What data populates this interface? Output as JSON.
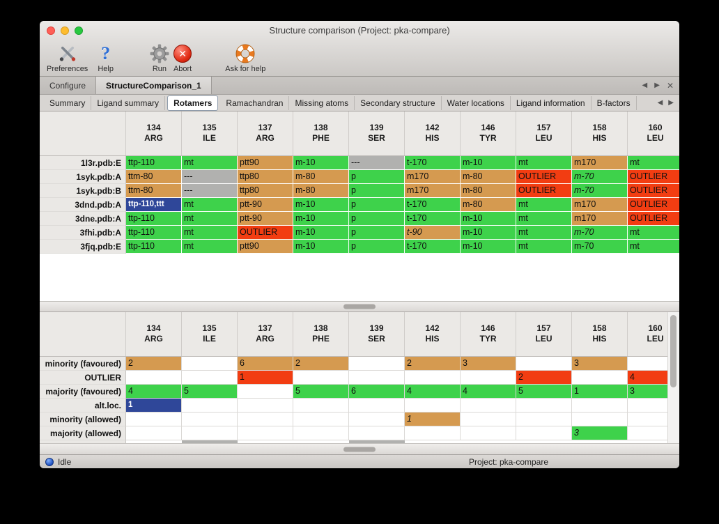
{
  "window": {
    "title": "Structure comparison (Project: pka-compare)"
  },
  "toolbar": {
    "items": [
      {
        "label": "Preferences",
        "icon": "preferences-icon"
      },
      {
        "label": "Help",
        "icon": "help-icon"
      },
      {
        "label": "Run",
        "icon": "run-gear-icon"
      },
      {
        "label": "Abort",
        "icon": "abort-icon"
      },
      {
        "label": "Ask for help",
        "icon": "lifebuoy-icon"
      }
    ]
  },
  "tabs": {
    "items": [
      {
        "label": "Configure",
        "selected": false
      },
      {
        "label": "StructureComparison_1",
        "selected": true
      }
    ]
  },
  "subtabs": {
    "items": [
      "Summary",
      "Ligand summary",
      "Rotamers",
      "Ramachandran",
      "Missing atoms",
      "Secondary structure",
      "Water locations",
      "Ligand information",
      "B-factors"
    ],
    "selected": "Rotamers"
  },
  "columns": [
    {
      "num": "134",
      "res": "ARG"
    },
    {
      "num": "135",
      "res": "ILE"
    },
    {
      "num": "137",
      "res": "ARG"
    },
    {
      "num": "138",
      "res": "PHE"
    },
    {
      "num": "139",
      "res": "SER"
    },
    {
      "num": "142",
      "res": "HIS"
    },
    {
      "num": "146",
      "res": "TYR"
    },
    {
      "num": "157",
      "res": "LEU"
    },
    {
      "num": "158",
      "res": "HIS"
    },
    {
      "num": "160",
      "res": "LEU"
    }
  ],
  "top_table": {
    "rows": [
      {
        "label": "1l3r.pdb:E",
        "cells": [
          {
            "t": "ttp-110",
            "c": "green"
          },
          {
            "t": "mt",
            "c": "green"
          },
          {
            "t": "ptt90",
            "c": "tan"
          },
          {
            "t": "m-10",
            "c": "green"
          },
          {
            "t": "---",
            "c": "gray"
          },
          {
            "t": "t-170",
            "c": "green"
          },
          {
            "t": "m-10",
            "c": "green"
          },
          {
            "t": "mt",
            "c": "green"
          },
          {
            "t": "m170",
            "c": "tan"
          },
          {
            "t": "mt",
            "c": "green"
          }
        ]
      },
      {
        "label": "1syk.pdb:A",
        "cells": [
          {
            "t": "ttm-80",
            "c": "tan"
          },
          {
            "t": "---",
            "c": "gray"
          },
          {
            "t": "ttp80",
            "c": "tan"
          },
          {
            "t": "m-80",
            "c": "tan"
          },
          {
            "t": "p",
            "c": "green"
          },
          {
            "t": "m170",
            "c": "tan"
          },
          {
            "t": "m-80",
            "c": "tan"
          },
          {
            "t": "OUTLIER",
            "c": "red"
          },
          {
            "t": "m-70",
            "c": "green",
            "i": true
          },
          {
            "t": "OUTLIER",
            "c": "red"
          }
        ]
      },
      {
        "label": "1syk.pdb:B",
        "cells": [
          {
            "t": "ttm-80",
            "c": "tan"
          },
          {
            "t": "---",
            "c": "gray"
          },
          {
            "t": "ttp80",
            "c": "tan"
          },
          {
            "t": "m-80",
            "c": "tan"
          },
          {
            "t": "p",
            "c": "green"
          },
          {
            "t": "m170",
            "c": "tan"
          },
          {
            "t": "m-80",
            "c": "tan"
          },
          {
            "t": "OUTLIER",
            "c": "red"
          },
          {
            "t": "m-70",
            "c": "green",
            "i": true
          },
          {
            "t": "OUTLIER",
            "c": "red"
          }
        ]
      },
      {
        "label": "3dnd.pdb:A",
        "cells": [
          {
            "t": "ttp-110,ttt",
            "c": "blue"
          },
          {
            "t": "mt",
            "c": "green"
          },
          {
            "t": "ptt-90",
            "c": "tan"
          },
          {
            "t": "m-10",
            "c": "green"
          },
          {
            "t": "p",
            "c": "green"
          },
          {
            "t": "t-170",
            "c": "green"
          },
          {
            "t": "m-80",
            "c": "tan"
          },
          {
            "t": "mt",
            "c": "green"
          },
          {
            "t": "m170",
            "c": "tan"
          },
          {
            "t": "OUTLIER",
            "c": "red"
          }
        ]
      },
      {
        "label": "3dne.pdb:A",
        "cells": [
          {
            "t": "ttp-110",
            "c": "green"
          },
          {
            "t": "mt",
            "c": "green"
          },
          {
            "t": "ptt-90",
            "c": "tan"
          },
          {
            "t": "m-10",
            "c": "green"
          },
          {
            "t": "p",
            "c": "green"
          },
          {
            "t": "t-170",
            "c": "green"
          },
          {
            "t": "m-10",
            "c": "green"
          },
          {
            "t": "mt",
            "c": "green"
          },
          {
            "t": "m170",
            "c": "tan"
          },
          {
            "t": "OUTLIER",
            "c": "red"
          }
        ]
      },
      {
        "label": "3fhi.pdb:A",
        "cells": [
          {
            "t": "ttp-110",
            "c": "green"
          },
          {
            "t": "mt",
            "c": "green"
          },
          {
            "t": "OUTLIER",
            "c": "red"
          },
          {
            "t": "m-10",
            "c": "green"
          },
          {
            "t": "p",
            "c": "green"
          },
          {
            "t": "t-90",
            "c": "tan",
            "i": true
          },
          {
            "t": "m-10",
            "c": "green"
          },
          {
            "t": "mt",
            "c": "green"
          },
          {
            "t": "m-70",
            "c": "green",
            "i": true
          },
          {
            "t": "mt",
            "c": "green"
          }
        ]
      },
      {
        "label": "3fjq.pdb:E",
        "cells": [
          {
            "t": "ttp-110",
            "c": "green"
          },
          {
            "t": "mt",
            "c": "green"
          },
          {
            "t": "ptt90",
            "c": "tan"
          },
          {
            "t": "m-10",
            "c": "green"
          },
          {
            "t": "p",
            "c": "green"
          },
          {
            "t": "t-170",
            "c": "green"
          },
          {
            "t": "m-10",
            "c": "green"
          },
          {
            "t": "mt",
            "c": "green"
          },
          {
            "t": "m-70",
            "c": "green"
          },
          {
            "t": "mt",
            "c": "green"
          }
        ]
      }
    ]
  },
  "bottom_table": {
    "rows": [
      {
        "label": "minority (favoured)",
        "cells": [
          {
            "t": "2",
            "c": "tan"
          },
          null,
          {
            "t": "6",
            "c": "tan"
          },
          {
            "t": "2",
            "c": "tan"
          },
          null,
          {
            "t": "2",
            "c": "tan"
          },
          {
            "t": "3",
            "c": "tan"
          },
          null,
          {
            "t": "3",
            "c": "tan"
          },
          null
        ]
      },
      {
        "label": "OUTLIER",
        "cells": [
          null,
          null,
          {
            "t": "1",
            "c": "red"
          },
          null,
          null,
          null,
          null,
          {
            "t": "2",
            "c": "red"
          },
          null,
          {
            "t": "4",
            "c": "red"
          }
        ]
      },
      {
        "label": "majority (favoured)",
        "cells": [
          {
            "t": "4",
            "c": "green"
          },
          {
            "t": "5",
            "c": "green"
          },
          null,
          {
            "t": "5",
            "c": "green"
          },
          {
            "t": "6",
            "c": "green"
          },
          {
            "t": "4",
            "c": "green"
          },
          {
            "t": "4",
            "c": "green"
          },
          {
            "t": "5",
            "c": "green"
          },
          {
            "t": "1",
            "c": "green"
          },
          {
            "t": "3",
            "c": "green"
          }
        ]
      },
      {
        "label": "alt.loc.",
        "cells": [
          {
            "t": "1",
            "c": "blue"
          },
          null,
          null,
          null,
          null,
          null,
          null,
          null,
          null,
          null
        ]
      },
      {
        "label": "minority (allowed)",
        "cells": [
          null,
          null,
          null,
          null,
          null,
          {
            "t": "1",
            "c": "tan",
            "i": true
          },
          null,
          null,
          null,
          null
        ]
      },
      {
        "label": "majority (allowed)",
        "cells": [
          null,
          null,
          null,
          null,
          null,
          null,
          null,
          null,
          {
            "t": "3",
            "c": "green",
            "i": true
          },
          null
        ]
      }
    ],
    "partial_gray_columns": [
      1,
      4
    ]
  },
  "statusbar": {
    "status": "Idle",
    "project": "Project: pka-compare"
  },
  "colors": {
    "green": "#3ed24b",
    "tan": "#d59a50",
    "red": "#f23d12",
    "gray": "#b1b1af",
    "blue": "#2f4799"
  }
}
